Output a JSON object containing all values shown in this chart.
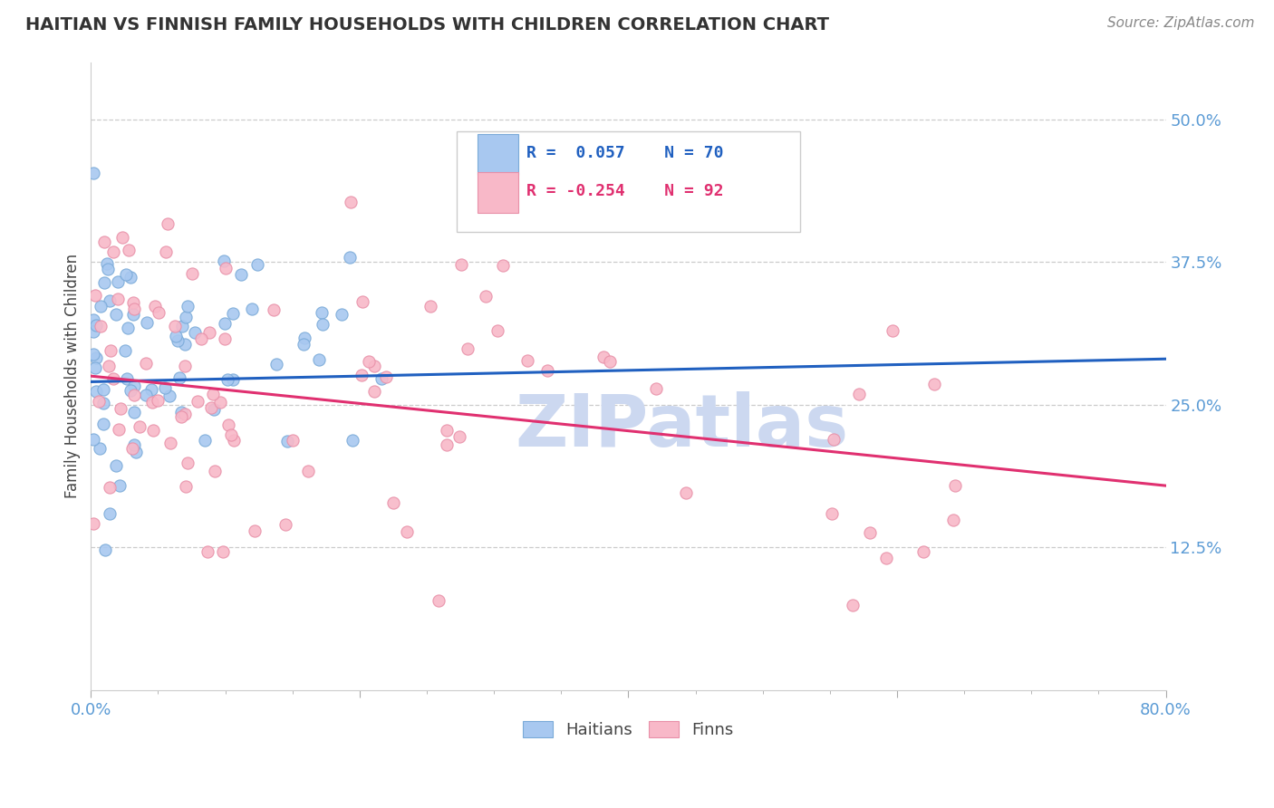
{
  "title": "HAITIAN VS FINNISH FAMILY HOUSEHOLDS WITH CHILDREN CORRELATION CHART",
  "source_text": "Source: ZipAtlas.com",
  "ylabel": "Family Households with Children",
  "xlim": [
    0,
    80
  ],
  "ylim": [
    0,
    55
  ],
  "R_haitian": 0.057,
  "N_haitian": 70,
  "R_finnish": -0.254,
  "N_finnish": 92,
  "haitian_color": "#a8c8f0",
  "haitian_edge_color": "#7aaad8",
  "finnish_color": "#f8b8c8",
  "finnish_edge_color": "#e890a8",
  "haitian_line_color": "#2060c0",
  "finnish_line_color": "#e03070",
  "watermark_text": "ZIPatlas",
  "watermark_color": "#ccd8f0",
  "legend_haitian_label": "Haitians",
  "legend_finnish_label": "Finns",
  "background_color": "#ffffff",
  "grid_color": "#cccccc",
  "title_color": "#333333",
  "axis_label_color": "#444444",
  "tick_label_color": "#5b9bd5",
  "source_color": "#888888",
  "ylabel_tick_vals": [
    12.5,
    25.0,
    37.5,
    50.0
  ],
  "ylabel_ticks": [
    "12.5%",
    "25.0%",
    "37.5%",
    "50.0%"
  ]
}
